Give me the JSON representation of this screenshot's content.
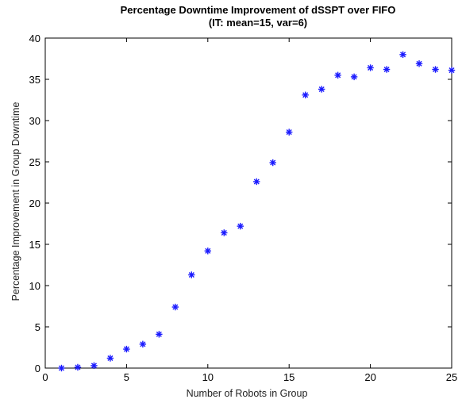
{
  "chart_data": {
    "type": "scatter",
    "title": "Percentage Downtime Improvement of dSSPT over FIFO",
    "subtitle": "(IT: mean=15, var=6)",
    "xlabel": "Number of Robots in Group",
    "ylabel": "Percentage Improvement in Group Downtime",
    "xlim": [
      0,
      25
    ],
    "ylim": [
      0,
      40
    ],
    "x_ticks": [
      0,
      5,
      10,
      15,
      20,
      25
    ],
    "y_ticks": [
      0,
      5,
      10,
      15,
      20,
      25,
      30,
      35,
      40
    ],
    "marker": "asterisk",
    "marker_color": "#1a1aff",
    "grid": false,
    "series": [
      {
        "x": [
          1,
          2,
          3,
          4,
          5,
          6,
          7,
          8,
          9,
          10,
          11,
          12,
          13,
          14,
          15,
          16,
          17,
          18,
          19,
          20,
          21,
          22,
          23,
          24,
          25
        ],
        "y": [
          0.0,
          0.1,
          0.3,
          1.2,
          2.3,
          2.9,
          4.1,
          7.4,
          11.3,
          14.2,
          16.4,
          17.2,
          22.6,
          24.9,
          28.6,
          33.1,
          33.8,
          35.5,
          35.3,
          36.4,
          36.2,
          38.0,
          36.9,
          36.2,
          36.1
        ]
      }
    ]
  }
}
